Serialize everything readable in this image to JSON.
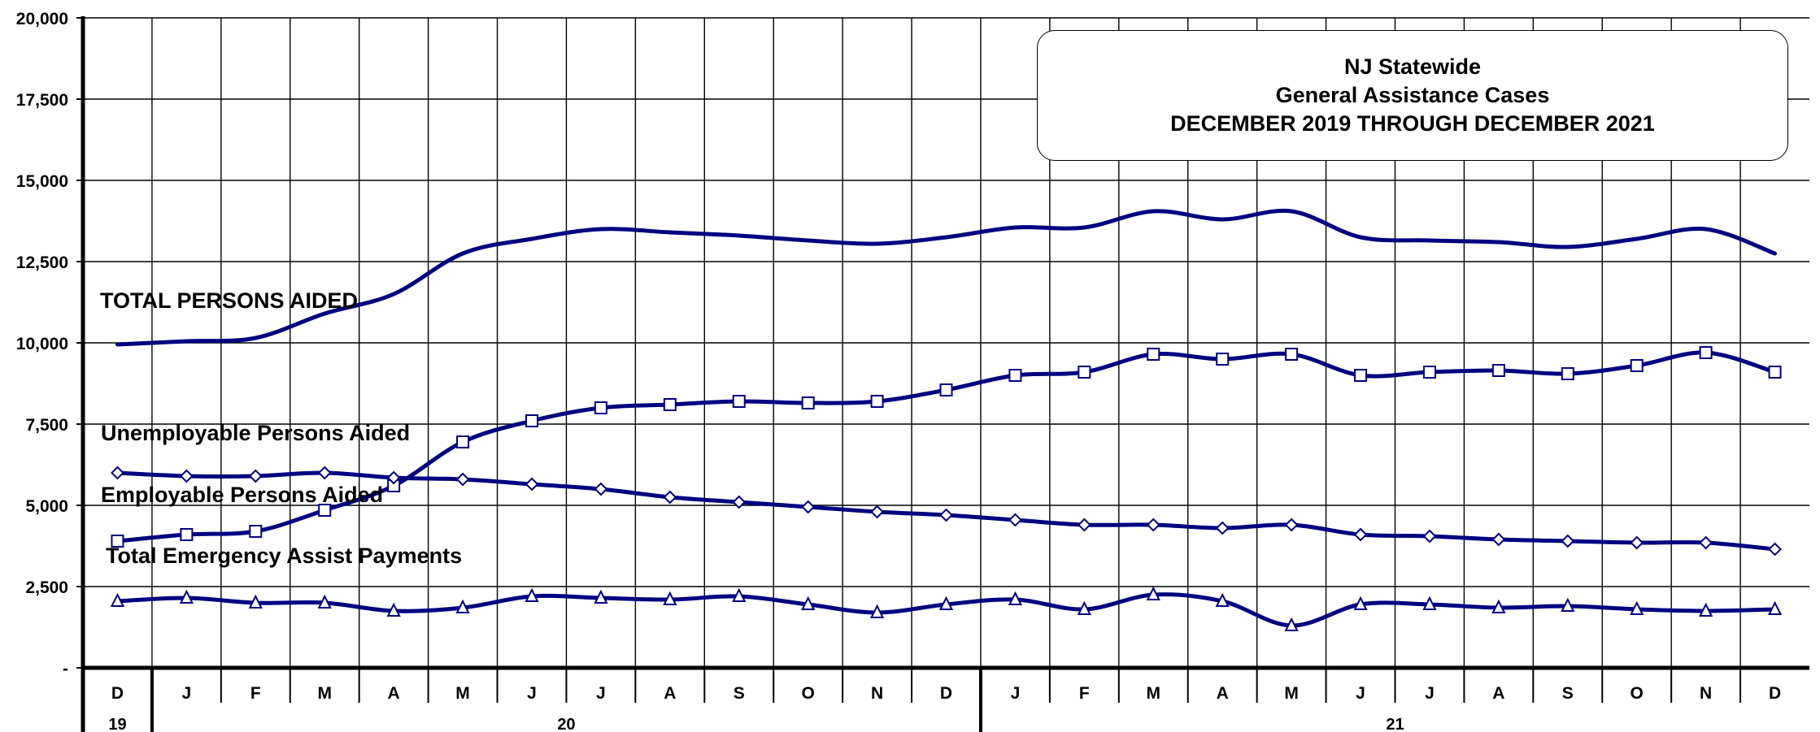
{
  "chart_data": {
    "type": "line",
    "title_lines": [
      "NJ Statewide",
      "General Assistance Cases",
      "DECEMBER 2019 THROUGH DECEMBER 2021"
    ],
    "ylim": [
      0,
      20000
    ],
    "y_ticks": [
      "-",
      "2,500",
      "5,000",
      "7,500",
      "10,000",
      "12,500",
      "15,000",
      "17,500",
      "20,000"
    ],
    "y_tick_values": [
      0,
      2500,
      5000,
      7500,
      10000,
      12500,
      15000,
      17500,
      20000
    ],
    "categories": [
      "D",
      "J",
      "F",
      "M",
      "A",
      "M",
      "J",
      "J",
      "A",
      "S",
      "O",
      "N",
      "D",
      "J",
      "F",
      "M",
      "A",
      "M",
      "J",
      "J",
      "A",
      "S",
      "O",
      "N",
      "D"
    ],
    "year_groups": [
      {
        "label": "19",
        "count": 1
      },
      {
        "label": "20",
        "count": 12
      },
      {
        "label": "21",
        "count": 12
      }
    ],
    "grid": true,
    "color": "#000080",
    "series": [
      {
        "name": "TOTAL PERSONS AIDED",
        "marker": "none",
        "values": [
          9950,
          10050,
          10150,
          10900,
          11500,
          12750,
          13200,
          13500,
          13400,
          13300,
          13150,
          13050,
          13250,
          13550,
          13550,
          14050,
          13800,
          14050,
          13250,
          13150,
          13100,
          12950,
          13200,
          13500,
          12750
        ]
      },
      {
        "name": "Unemployable Persons Aided",
        "marker": "square",
        "values": [
          3900,
          4100,
          4200,
          4850,
          5600,
          6950,
          7600,
          8000,
          8100,
          8200,
          8150,
          8200,
          8550,
          9000,
          9100,
          9650,
          9500,
          9650,
          9000,
          9100,
          9150,
          9050,
          9300,
          9700,
          9100
        ]
      },
      {
        "name": "Employable Persons Aided",
        "marker": "diamond",
        "values": [
          6000,
          5900,
          5900,
          6000,
          5850,
          5800,
          5650,
          5500,
          5250,
          5100,
          4950,
          4800,
          4700,
          4550,
          4400,
          4400,
          4300,
          4400,
          4100,
          4050,
          3950,
          3900,
          3850,
          3850,
          3650
        ]
      },
      {
        "name": "Total Emergency Assist Payments",
        "marker": "triangle",
        "values": [
          2050,
          2150,
          2000,
          2000,
          1750,
          1850,
          2200,
          2150,
          2100,
          2200,
          1950,
          1700,
          1950,
          2100,
          1800,
          2250,
          2050,
          1300,
          1950,
          1950,
          1850,
          1900,
          1800,
          1750,
          1800
        ]
      }
    ]
  }
}
